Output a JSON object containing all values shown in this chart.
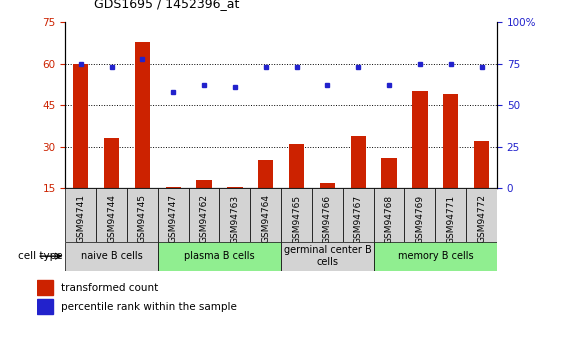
{
  "title": "GDS1695 / 1452396_at",
  "samples": [
    "GSM94741",
    "GSM94744",
    "GSM94745",
    "GSM94747",
    "GSM94762",
    "GSM94763",
    "GSM94764",
    "GSM94765",
    "GSM94766",
    "GSM94767",
    "GSM94768",
    "GSM94769",
    "GSM94771",
    "GSM94772"
  ],
  "transformed_count": [
    60,
    33,
    68,
    15.5,
    18,
    15.5,
    25,
    31,
    17,
    34,
    26,
    50,
    49,
    32
  ],
  "percentile_rank": [
    75,
    73,
    78,
    58,
    62,
    61,
    73,
    73,
    62,
    73,
    62,
    75,
    75,
    73
  ],
  "ylim_left": [
    15,
    75
  ],
  "ylim_right": [
    0,
    100
  ],
  "yticks_left": [
    15,
    30,
    45,
    60,
    75
  ],
  "yticks_right": [
    0,
    25,
    50,
    75,
    100
  ],
  "cell_groups": [
    {
      "label": "naive B cells",
      "start": 0,
      "end": 3,
      "color": "#d3d3d3"
    },
    {
      "label": "plasma B cells",
      "start": 3,
      "end": 7,
      "color": "#90ee90"
    },
    {
      "label": "germinal center B\ncells",
      "start": 7,
      "end": 10,
      "color": "#d3d3d3"
    },
    {
      "label": "memory B cells",
      "start": 10,
      "end": 14,
      "color": "#90ee90"
    }
  ],
  "bar_color": "#cc2200",
  "dot_color": "#2222cc",
  "bar_width": 0.5,
  "legend_labels": [
    "transformed count",
    "percentile rank within the sample"
  ],
  "cell_type_label": "cell type",
  "background_color": "#ffffff",
  "label_bg_colors": [
    "#d3d3d3",
    "#d3d3d3",
    "#d3d3d3",
    "#d3d3d3",
    "#d3d3d3",
    "#d3d3d3",
    "#d3d3d3",
    "#d3d3d3",
    "#d3d3d3",
    "#d3d3d3",
    "#d3d3d3",
    "#d3d3d3",
    "#d3d3d3",
    "#d3d3d3"
  ]
}
